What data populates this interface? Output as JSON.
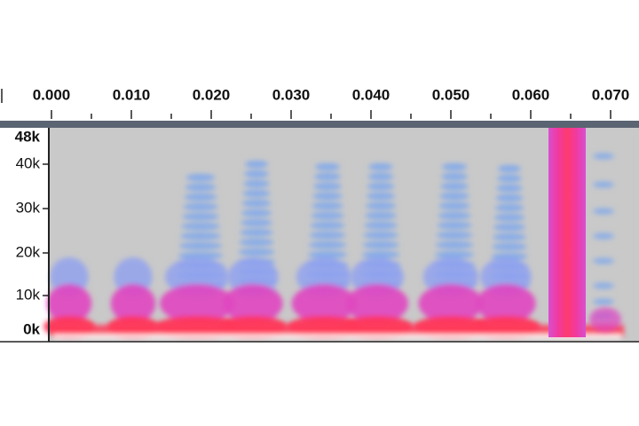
{
  "ruler": {
    "labels": [
      "0.000",
      "0.010",
      "0.020",
      "0.030",
      "0.040",
      "0.050",
      "0.060",
      "0.070"
    ]
  },
  "frequency_axis": {
    "labels": [
      "48k",
      "40k",
      "30k",
      "20k",
      "10k",
      "0k"
    ]
  }
}
